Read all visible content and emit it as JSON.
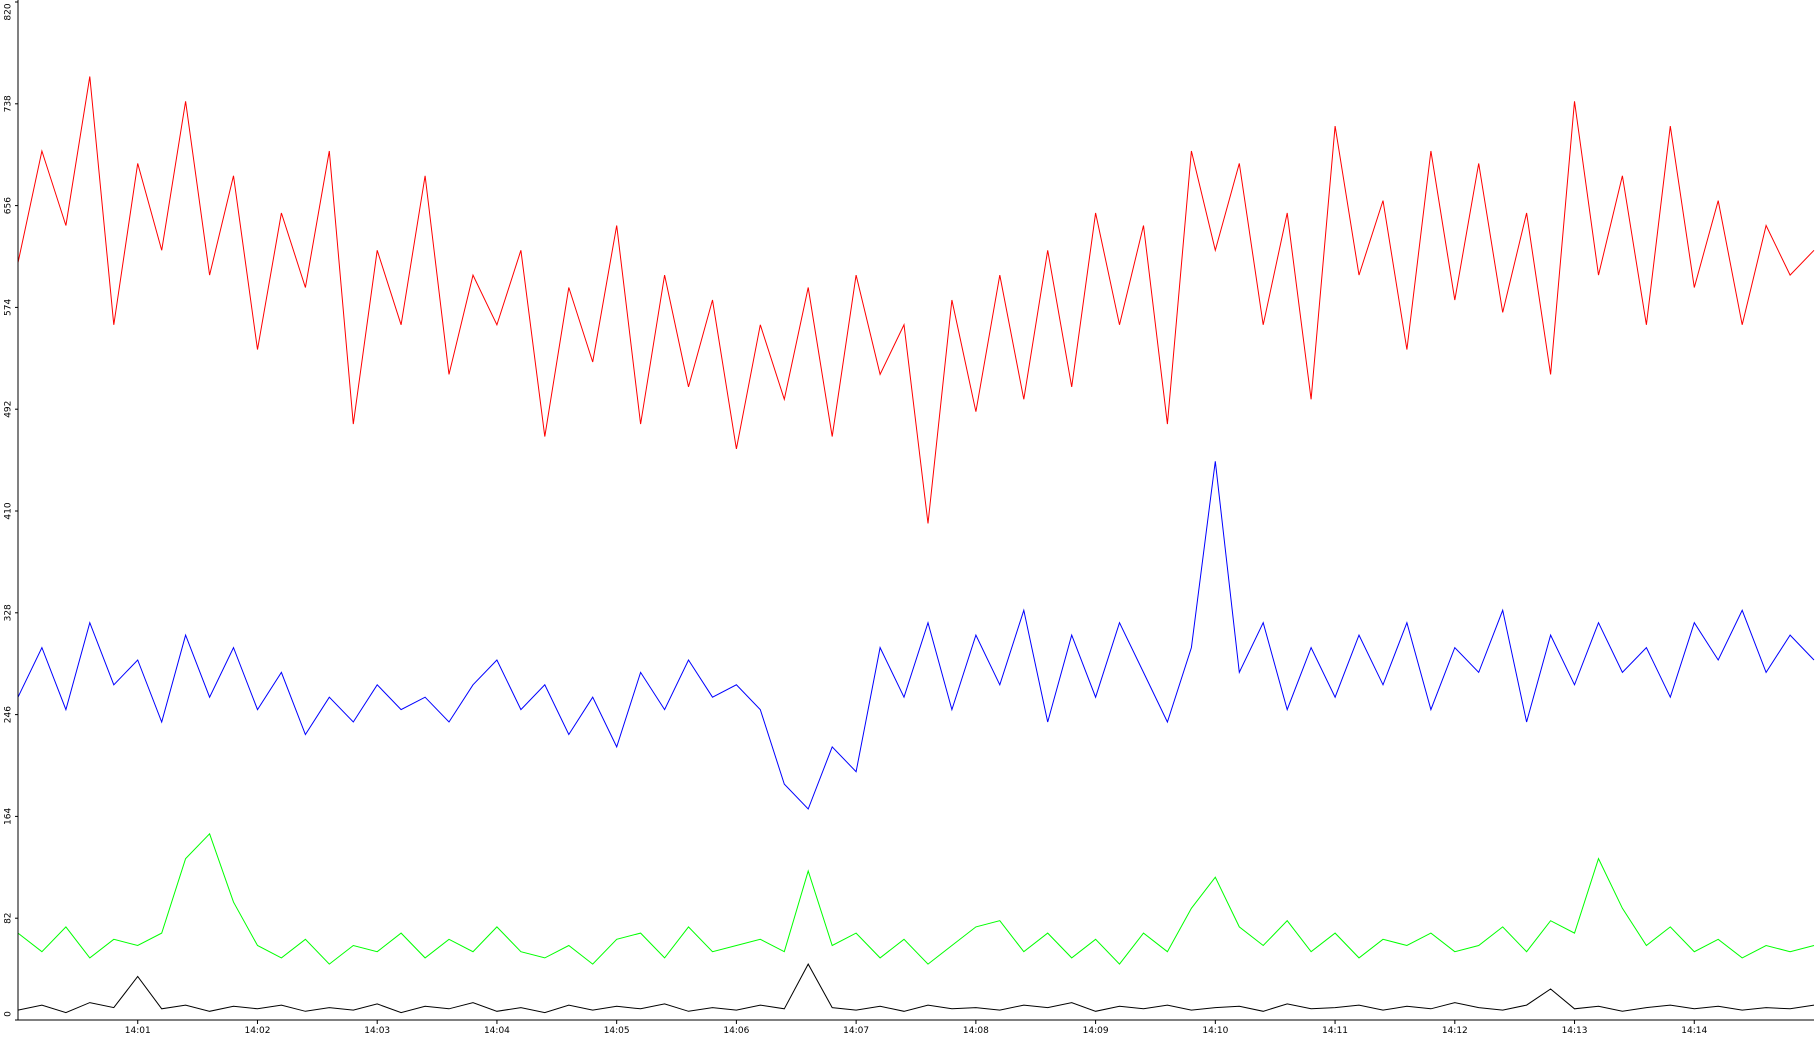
{
  "chart_data": {
    "type": "line",
    "x": [
      0,
      0.2,
      0.4,
      0.6,
      0.8,
      1,
      1.2,
      1.4,
      1.6,
      1.8,
      2,
      2.2,
      2.4,
      2.6,
      2.8,
      3,
      3.2,
      3.4,
      3.6,
      3.8,
      4,
      4.2,
      4.4,
      4.6,
      4.8,
      5,
      5.2,
      5.4,
      5.6,
      5.8,
      6,
      6.2,
      6.4,
      6.6,
      6.8,
      7,
      7.2,
      7.4,
      7.6,
      7.8,
      8,
      8.2,
      8.4,
      8.6,
      8.8,
      9,
      9.2,
      9.4,
      9.6,
      9.8,
      10,
      10.2,
      10.4,
      10.6,
      10.8,
      11,
      11.2,
      11.4,
      11.6,
      11.8,
      12,
      12.2,
      12.4,
      12.6,
      12.8,
      13,
      13.2,
      13.4,
      13.6,
      13.8,
      14,
      14.2,
      14.4,
      14.6,
      14.8,
      15
    ],
    "series": [
      {
        "color": "#ff0000",
        "values": [
          610,
          700,
          640,
          760,
          560,
          690,
          620,
          740,
          600,
          680,
          540,
          650,
          590,
          700,
          480,
          620,
          560,
          680,
          520,
          600,
          560,
          620,
          470,
          590,
          530,
          640,
          480,
          600,
          510,
          580,
          460,
          560,
          500,
          590,
          470,
          600,
          520,
          560,
          400,
          580,
          490,
          600,
          500,
          620,
          510,
          650,
          560,
          640,
          480,
          700,
          620,
          690,
          560,
          650,
          500,
          720,
          600,
          660,
          540,
          700,
          580,
          690,
          570,
          650,
          520,
          740,
          600,
          680,
          560,
          720,
          590,
          660,
          560,
          640,
          600,
          620
        ]
      },
      {
        "color": "#0000ff",
        "values": [
          260,
          300,
          250,
          320,
          270,
          290,
          240,
          310,
          260,
          300,
          250,
          280,
          230,
          260,
          240,
          270,
          250,
          260,
          240,
          270,
          290,
          250,
          270,
          230,
          260,
          220,
          280,
          250,
          290,
          260,
          270,
          250,
          190,
          170,
          220,
          200,
          300,
          260,
          320,
          250,
          310,
          270,
          330,
          240,
          310,
          260,
          320,
          280,
          240,
          300,
          450,
          280,
          320,
          250,
          300,
          260,
          310,
          270,
          320,
          250,
          300,
          280,
          330,
          240,
          310,
          270,
          320,
          280,
          300,
          260,
          320,
          290,
          330,
          280,
          310,
          290
        ]
      },
      {
        "color": "#00ff00",
        "values": [
          70,
          55,
          75,
          50,
          65,
          60,
          70,
          130,
          150,
          95,
          60,
          50,
          65,
          45,
          60,
          55,
          70,
          50,
          65,
          55,
          75,
          55,
          50,
          60,
          45,
          65,
          70,
          50,
          75,
          55,
          60,
          65,
          55,
          120,
          60,
          70,
          50,
          65,
          45,
          60,
          75,
          80,
          55,
          70,
          50,
          65,
          45,
          70,
          55,
          90,
          115,
          75,
          60,
          80,
          55,
          70,
          50,
          65,
          60,
          70,
          55,
          60,
          75,
          55,
          80,
          70,
          130,
          90,
          60,
          75,
          55,
          65,
          50,
          60,
          55,
          60
        ]
      },
      {
        "color": "#000000",
        "values": [
          8,
          12,
          6,
          14,
          10,
          35,
          9,
          12,
          7,
          11,
          9,
          12,
          7,
          10,
          8,
          13,
          6,
          11,
          9,
          14,
          7,
          10,
          6,
          12,
          8,
          11,
          9,
          13,
          7,
          10,
          8,
          12,
          9,
          45,
          10,
          8,
          11,
          7,
          12,
          9,
          10,
          8,
          12,
          10,
          14,
          7,
          11,
          9,
          12,
          8,
          10,
          11,
          7,
          13,
          9,
          10,
          12,
          8,
          11,
          9,
          14,
          10,
          8,
          12,
          25,
          9,
          11,
          7,
          10,
          12,
          9,
          11,
          8,
          10,
          9,
          12
        ]
      }
    ],
    "xlim": [
      0,
      15
    ],
    "xticks": [
      {
        "value": 1,
        "label": "14:01"
      },
      {
        "value": 2,
        "label": "14:02"
      },
      {
        "value": 3,
        "label": "14:03"
      },
      {
        "value": 4,
        "label": "14:04"
      },
      {
        "value": 5,
        "label": "14:05"
      },
      {
        "value": 6,
        "label": "14:06"
      },
      {
        "value": 7,
        "label": "14:07"
      },
      {
        "value": 8,
        "label": "14:08"
      },
      {
        "value": 9,
        "label": "14:09"
      },
      {
        "value": 10,
        "label": "14:10"
      },
      {
        "value": 11,
        "label": "14:11"
      },
      {
        "value": 12,
        "label": "14:12"
      },
      {
        "value": 13,
        "label": "14:13"
      },
      {
        "value": 14,
        "label": "14:14"
      }
    ],
    "ylim": [
      0,
      820
    ],
    "yticks": [
      0,
      82,
      164,
      246,
      328,
      410,
      492,
      574,
      656,
      738,
      820
    ]
  }
}
